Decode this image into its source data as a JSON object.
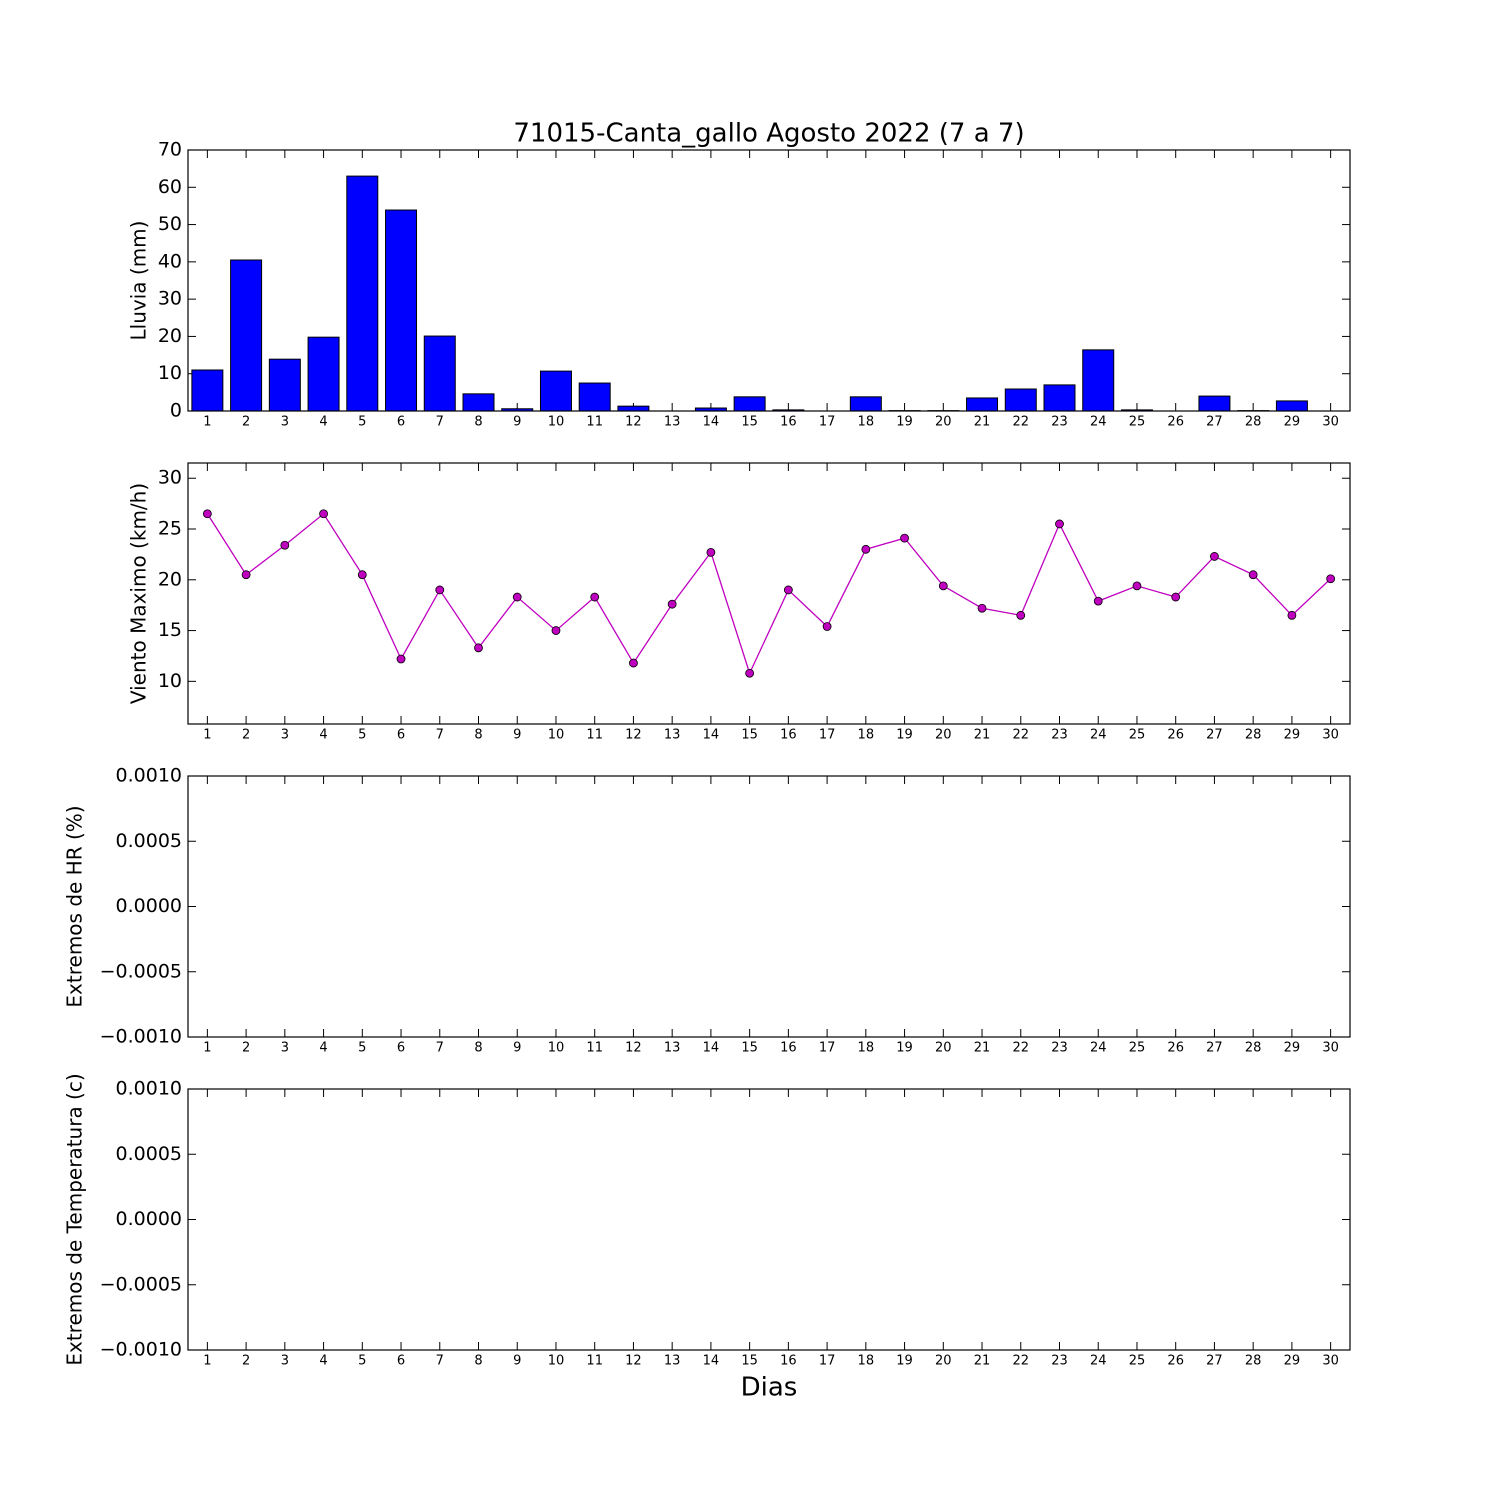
{
  "chart_data": [
    {
      "type": "bar",
      "title": "71015-Canta_gallo Agosto 2022  (7 a 7)",
      "ylabel": "Lluvia (mm)",
      "categories": [
        "1",
        "2",
        "3",
        "4",
        "5",
        "6",
        "7",
        "8",
        "9",
        "10",
        "11",
        "12",
        "13",
        "14",
        "15",
        "16",
        "17",
        "18",
        "19",
        "20",
        "21",
        "22",
        "23",
        "24",
        "25",
        "26",
        "27",
        "28",
        "29",
        "30"
      ],
      "values": [
        11.0,
        40.5,
        13.9,
        19.8,
        63.0,
        53.9,
        20.1,
        4.6,
        0.6,
        10.7,
        7.5,
        1.3,
        0,
        0.8,
        3.8,
        0.3,
        0,
        3.8,
        0.1,
        0.1,
        3.5,
        5.9,
        7.0,
        16.4,
        0.3,
        0,
        4.0,
        0.1,
        2.7,
        0
      ],
      "color": "#0000ff",
      "ylim": [
        0,
        70
      ],
      "yticks": [
        0,
        10,
        20,
        30,
        40,
        50,
        60,
        70
      ]
    },
    {
      "type": "line",
      "ylabel": "Viento Maximo (km/h)",
      "categories": [
        "1",
        "2",
        "3",
        "4",
        "5",
        "6",
        "7",
        "8",
        "9",
        "10",
        "11",
        "12",
        "13",
        "14",
        "15",
        "16",
        "17",
        "18",
        "19",
        "20",
        "21",
        "22",
        "23",
        "24",
        "25",
        "26",
        "27",
        "28",
        "29",
        "30"
      ],
      "values": [
        26.5,
        20.5,
        23.4,
        26.5,
        20.5,
        12.2,
        19.0,
        13.3,
        18.3,
        15.0,
        18.3,
        11.8,
        17.6,
        22.7,
        10.8,
        19.0,
        15.4,
        23.0,
        24.1,
        19.4,
        17.2,
        16.5,
        25.5,
        17.9,
        19.4,
        18.3,
        22.3,
        20.5,
        16.5,
        20.1
      ],
      "color": "#bf00bf",
      "ylim": [
        5.8,
        31.5
      ],
      "yticks": [
        10,
        15,
        20,
        25,
        30
      ]
    },
    {
      "type": "line",
      "ylabel": "Extremos de HR (%)",
      "categories": [
        "1",
        "2",
        "3",
        "4",
        "5",
        "6",
        "7",
        "8",
        "9",
        "10",
        "11",
        "12",
        "13",
        "14",
        "15",
        "16",
        "17",
        "18",
        "19",
        "20",
        "21",
        "22",
        "23",
        "24",
        "25",
        "26",
        "27",
        "28",
        "29",
        "30"
      ],
      "ylim": [
        -0.001,
        0.001
      ],
      "yticks": [
        {
          "value": -0.001,
          "label": "−0.0010"
        },
        {
          "value": -0.0005,
          "label": "−0.0005"
        },
        {
          "value": 0,
          "label": "0.0000"
        },
        {
          "value": 0.0005,
          "label": "0.0005"
        },
        {
          "value": 0.001,
          "label": "0.0010"
        }
      ]
    },
    {
      "type": "line",
      "ylabel": "Extremos de Temperatura (c)",
      "xlabel": "Dias",
      "categories": [
        "1",
        "2",
        "3",
        "4",
        "5",
        "6",
        "7",
        "8",
        "9",
        "10",
        "11",
        "12",
        "13",
        "14",
        "15",
        "16",
        "17",
        "18",
        "19",
        "20",
        "21",
        "22",
        "23",
        "24",
        "25",
        "26",
        "27",
        "28",
        "29",
        "30"
      ],
      "ylim": [
        -0.001,
        0.001
      ],
      "yticks": [
        {
          "value": -0.001,
          "label": "−0.0010"
        },
        {
          "value": -0.0005,
          "label": "−0.0005"
        },
        {
          "value": 0,
          "label": "0.0000"
        },
        {
          "value": 0.0005,
          "label": "0.0005"
        },
        {
          "value": 0.001,
          "label": "0.0010"
        }
      ]
    }
  ]
}
